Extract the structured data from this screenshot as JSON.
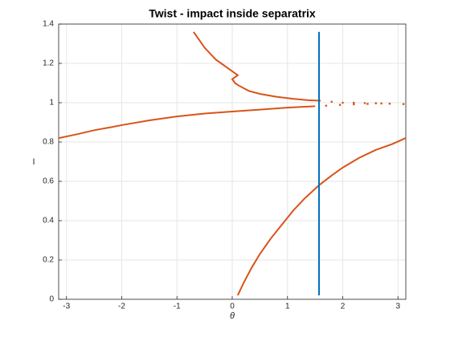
{
  "chart_data": {
    "type": "scatter",
    "title": "Twist - impact inside separatrix",
    "x_label": "θ",
    "y_label": "I",
    "xlim": [
      -3.1416,
      3.1416
    ],
    "ylim": [
      0,
      1.4
    ],
    "xticks": [
      -3,
      -2,
      -1,
      0,
      1,
      2,
      3
    ],
    "yticks": [
      0,
      0.2,
      0.4,
      0.6,
      0.8,
      1,
      1.2,
      1.4
    ],
    "grid": true,
    "series": [
      {
        "color": "#d95319",
        "style": "line",
        "x": [
          0.1,
          0.2,
          0.35,
          0.5,
          0.7,
          0.9,
          1.1,
          1.3,
          1.57,
          1.8,
          2.0,
          2.3,
          2.6,
          2.9,
          3.14
        ],
        "values": [
          0.02,
          0.08,
          0.16,
          0.23,
          0.31,
          0.38,
          0.45,
          0.51,
          0.58,
          0.63,
          0.67,
          0.72,
          0.76,
          0.79,
          0.82
        ]
      },
      {
        "color": "#d95319",
        "style": "line",
        "x": [
          -3.14,
          -2.8,
          -2.5,
          -2.2,
          -2,
          -1.5,
          -1,
          -0.5,
          0,
          0.5,
          1,
          1.5
        ],
        "values": [
          0.82,
          0.84,
          0.86,
          0.875,
          0.886,
          0.91,
          0.93,
          0.945,
          0.955,
          0.965,
          0.975,
          0.982
        ]
      },
      {
        "color": "#d95319",
        "style": "dots",
        "x": [
          1.7,
          1.95,
          2.2,
          2.45,
          2.7
        ],
        "values": [
          0.985,
          0.989,
          0.992,
          0.994,
          0.996
        ]
      },
      {
        "color": "#d95319",
        "style": "line",
        "x": [
          -0.7,
          -0.6,
          -0.5,
          -0.4,
          -0.3,
          -0.2,
          -0.1,
          0,
          0.1,
          0.05,
          0,
          0.05,
          0.1,
          0.3,
          0.5,
          0.8,
          1.1,
          1.4,
          1.6
        ],
        "values": [
          1.36,
          1.32,
          1.28,
          1.25,
          1.22,
          1.2,
          1.18,
          1.16,
          1.14,
          1.13,
          1.12,
          1.1,
          1.09,
          1.06,
          1.045,
          1.03,
          1.02,
          1.012,
          1.01
        ]
      },
      {
        "color": "#d95319",
        "style": "dots",
        "x": [
          1.8,
          2.0,
          2.2,
          2.4,
          2.6,
          2.85,
          3.1
        ],
        "values": [
          1.005,
          1.0,
          1.0,
          0.998,
          0.997,
          0.995,
          0.993
        ]
      },
      {
        "color": "#0072bd",
        "style": "line",
        "x": [
          1.5708,
          1.5708
        ],
        "values": [
          0.02,
          1.36
        ]
      }
    ]
  }
}
